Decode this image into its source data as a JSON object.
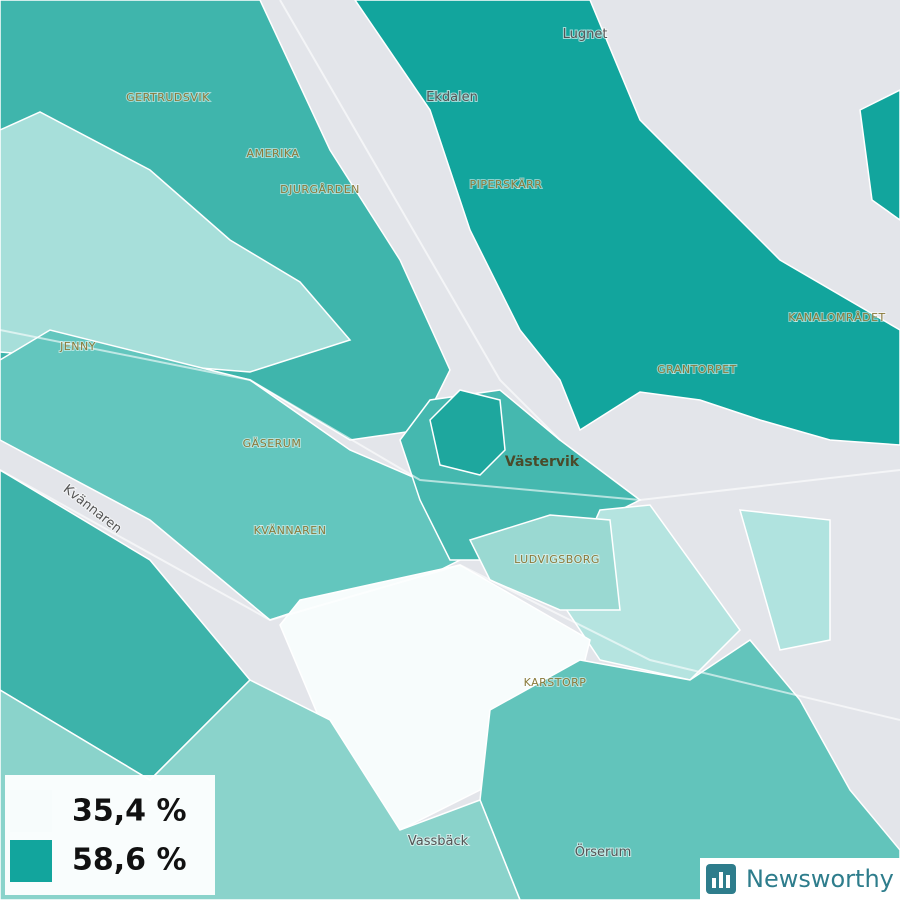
{
  "places": [
    "GERTRUDSVIK",
    "AMERIKA",
    "DJURGÅRDEN",
    "JENNY",
    "GÄSERUM",
    "KVÄNNAREN",
    "PIPERSKÄRR",
    "GRANTORPET",
    "KANALOMRÅDET",
    "LUDVIGSBORG",
    "KARSTORP"
  ],
  "towns": [
    "Lugnet",
    "Ekdalen",
    "Vassbäck",
    "Örserum",
    "Kvännaren"
  ],
  "city": "Västervik",
  "legend": [
    {
      "label": "35,4 %",
      "color": "#f7fcfc"
    },
    {
      "label": "58,6 %",
      "color": "#12a59d"
    }
  ],
  "brand": "Newsworthy"
}
